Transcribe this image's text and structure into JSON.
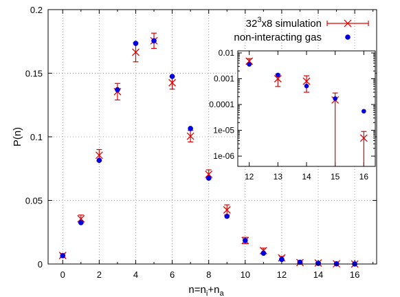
{
  "chart_data": [
    {
      "type": "scatter",
      "xlabel": "n=n",
      "xlabel_sub1": "i",
      "xlabel_mid": "+n",
      "xlabel_sub2": "a",
      "ylabel": "P(n)",
      "xlim": [
        -0.8,
        17.2
      ],
      "ylim": [
        0,
        0.2
      ],
      "xticks": [
        0,
        2,
        4,
        6,
        8,
        10,
        12,
        14,
        16
      ],
      "yticks": [
        0,
        0.05,
        0.1,
        0.15,
        0.2
      ],
      "ytick_labels": [
        "0",
        "0.05",
        "0.1",
        "0.15",
        "0.2"
      ],
      "grid": true,
      "legend_position": "top-right",
      "series": [
        {
          "name": "32",
          "name_sup": "3",
          "name_suffix": "x8 simulation",
          "color": "#e00000",
          "marker": "x-with-errorbars",
          "x": [
            0,
            1,
            2,
            3,
            4,
            5,
            6,
            7,
            8,
            9,
            10,
            11,
            12,
            13,
            14,
            15,
            16
          ],
          "y": [
            0.0067,
            0.0355,
            0.0855,
            0.1355,
            0.1665,
            0.1755,
            0.1425,
            0.1005,
            0.0705,
            0.0425,
            0.0185,
            0.0105,
            0.0048,
            0.0011,
            0.0008,
            0.00015,
            5e-06
          ],
          "err": [
            0.0015,
            0.003,
            0.0045,
            0.0065,
            0.0075,
            0.006,
            0.005,
            0.0045,
            0.0035,
            0.004,
            0.0025,
            0.002,
            0.0012,
            0.0005,
            0.0004,
            0.00013,
            4e-06
          ]
        },
        {
          "name": "non-interacting gas",
          "color": "#0000e0",
          "marker": "filled-circle",
          "x": [
            0,
            1,
            2,
            3,
            4,
            5,
            6,
            7,
            8,
            9,
            10,
            11,
            12,
            13,
            14,
            15,
            16
          ],
          "y": [
            0.0065,
            0.0325,
            0.0815,
            0.137,
            0.1735,
            0.1755,
            0.1475,
            0.1065,
            0.0675,
            0.0375,
            0.0185,
            0.0085,
            0.0036,
            0.0014,
            0.00052,
            0.00017,
            5.5e-05
          ]
        }
      ]
    },
    {
      "type": "scatter",
      "yscale": "log",
      "xlim": [
        11.6,
        16.4
      ],
      "ylim": [
        4e-07,
        0.012
      ],
      "xticks": [
        12,
        13,
        14,
        15,
        16
      ],
      "yticks": [
        1e-06,
        1e-05,
        0.0001,
        0.001,
        0.01
      ],
      "ytick_labels": [
        "1e-06",
        "1e-05",
        "0.0001",
        "0.001",
        "0.01"
      ],
      "grid": false,
      "series": [
        {
          "color": "#e00000",
          "marker": "x-with-errorbars",
          "x": [
            12,
            13,
            14,
            15,
            16
          ],
          "y": [
            0.0048,
            0.001,
            0.0008,
            0.00015,
            5e-06
          ],
          "err_low": [
            0.0012,
            0.0005,
            0.0005,
            0.00015,
            5e-06
          ],
          "err_high": [
            0.0012,
            0.0005,
            0.0005,
            0.00013,
            4e-06
          ]
        },
        {
          "color": "#0000e0",
          "marker": "filled-circle",
          "x": [
            12,
            13,
            14,
            15,
            16
          ],
          "y": [
            0.0036,
            0.0014,
            0.00052,
            0.00017,
            5.5e-05
          ]
        }
      ]
    }
  ]
}
